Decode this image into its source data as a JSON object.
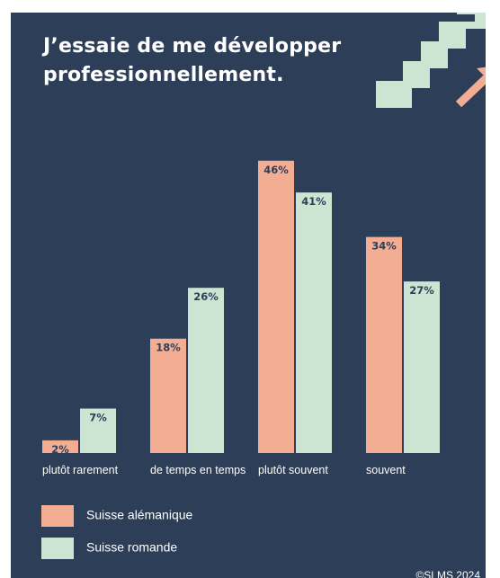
{
  "title_lines": [
    "J’essaie de me développer",
    "professionnellement."
  ],
  "colors": {
    "background": "#2d3e58",
    "suisse_alemanique": "#f2ad93",
    "suisse_romande": "#cbe5d2"
  },
  "legend": {
    "suisse_alemanique": "Suisse alémanique",
    "suisse_romande": "Suisse romande"
  },
  "copyright": "©SLMS 2024",
  "chart_data": {
    "type": "bar",
    "title": "J’essaie de me développer professionnellement.",
    "categories": [
      "plutôt rarement",
      "de temps en temps",
      "plutôt souvent",
      "souvent"
    ],
    "series": [
      {
        "name": "Suisse alémanique",
        "values": [
          2,
          18,
          46,
          34
        ],
        "labels": [
          "2%",
          "18%",
          "46%",
          "34%"
        ]
      },
      {
        "name": "Suisse romande",
        "values": [
          7,
          26,
          41,
          27
        ],
        "labels": [
          "7%",
          "26%",
          "41%",
          "27%"
        ]
      }
    ],
    "ylim": [
      0,
      46
    ],
    "grid": false,
    "legend_position": "bottom-left"
  }
}
